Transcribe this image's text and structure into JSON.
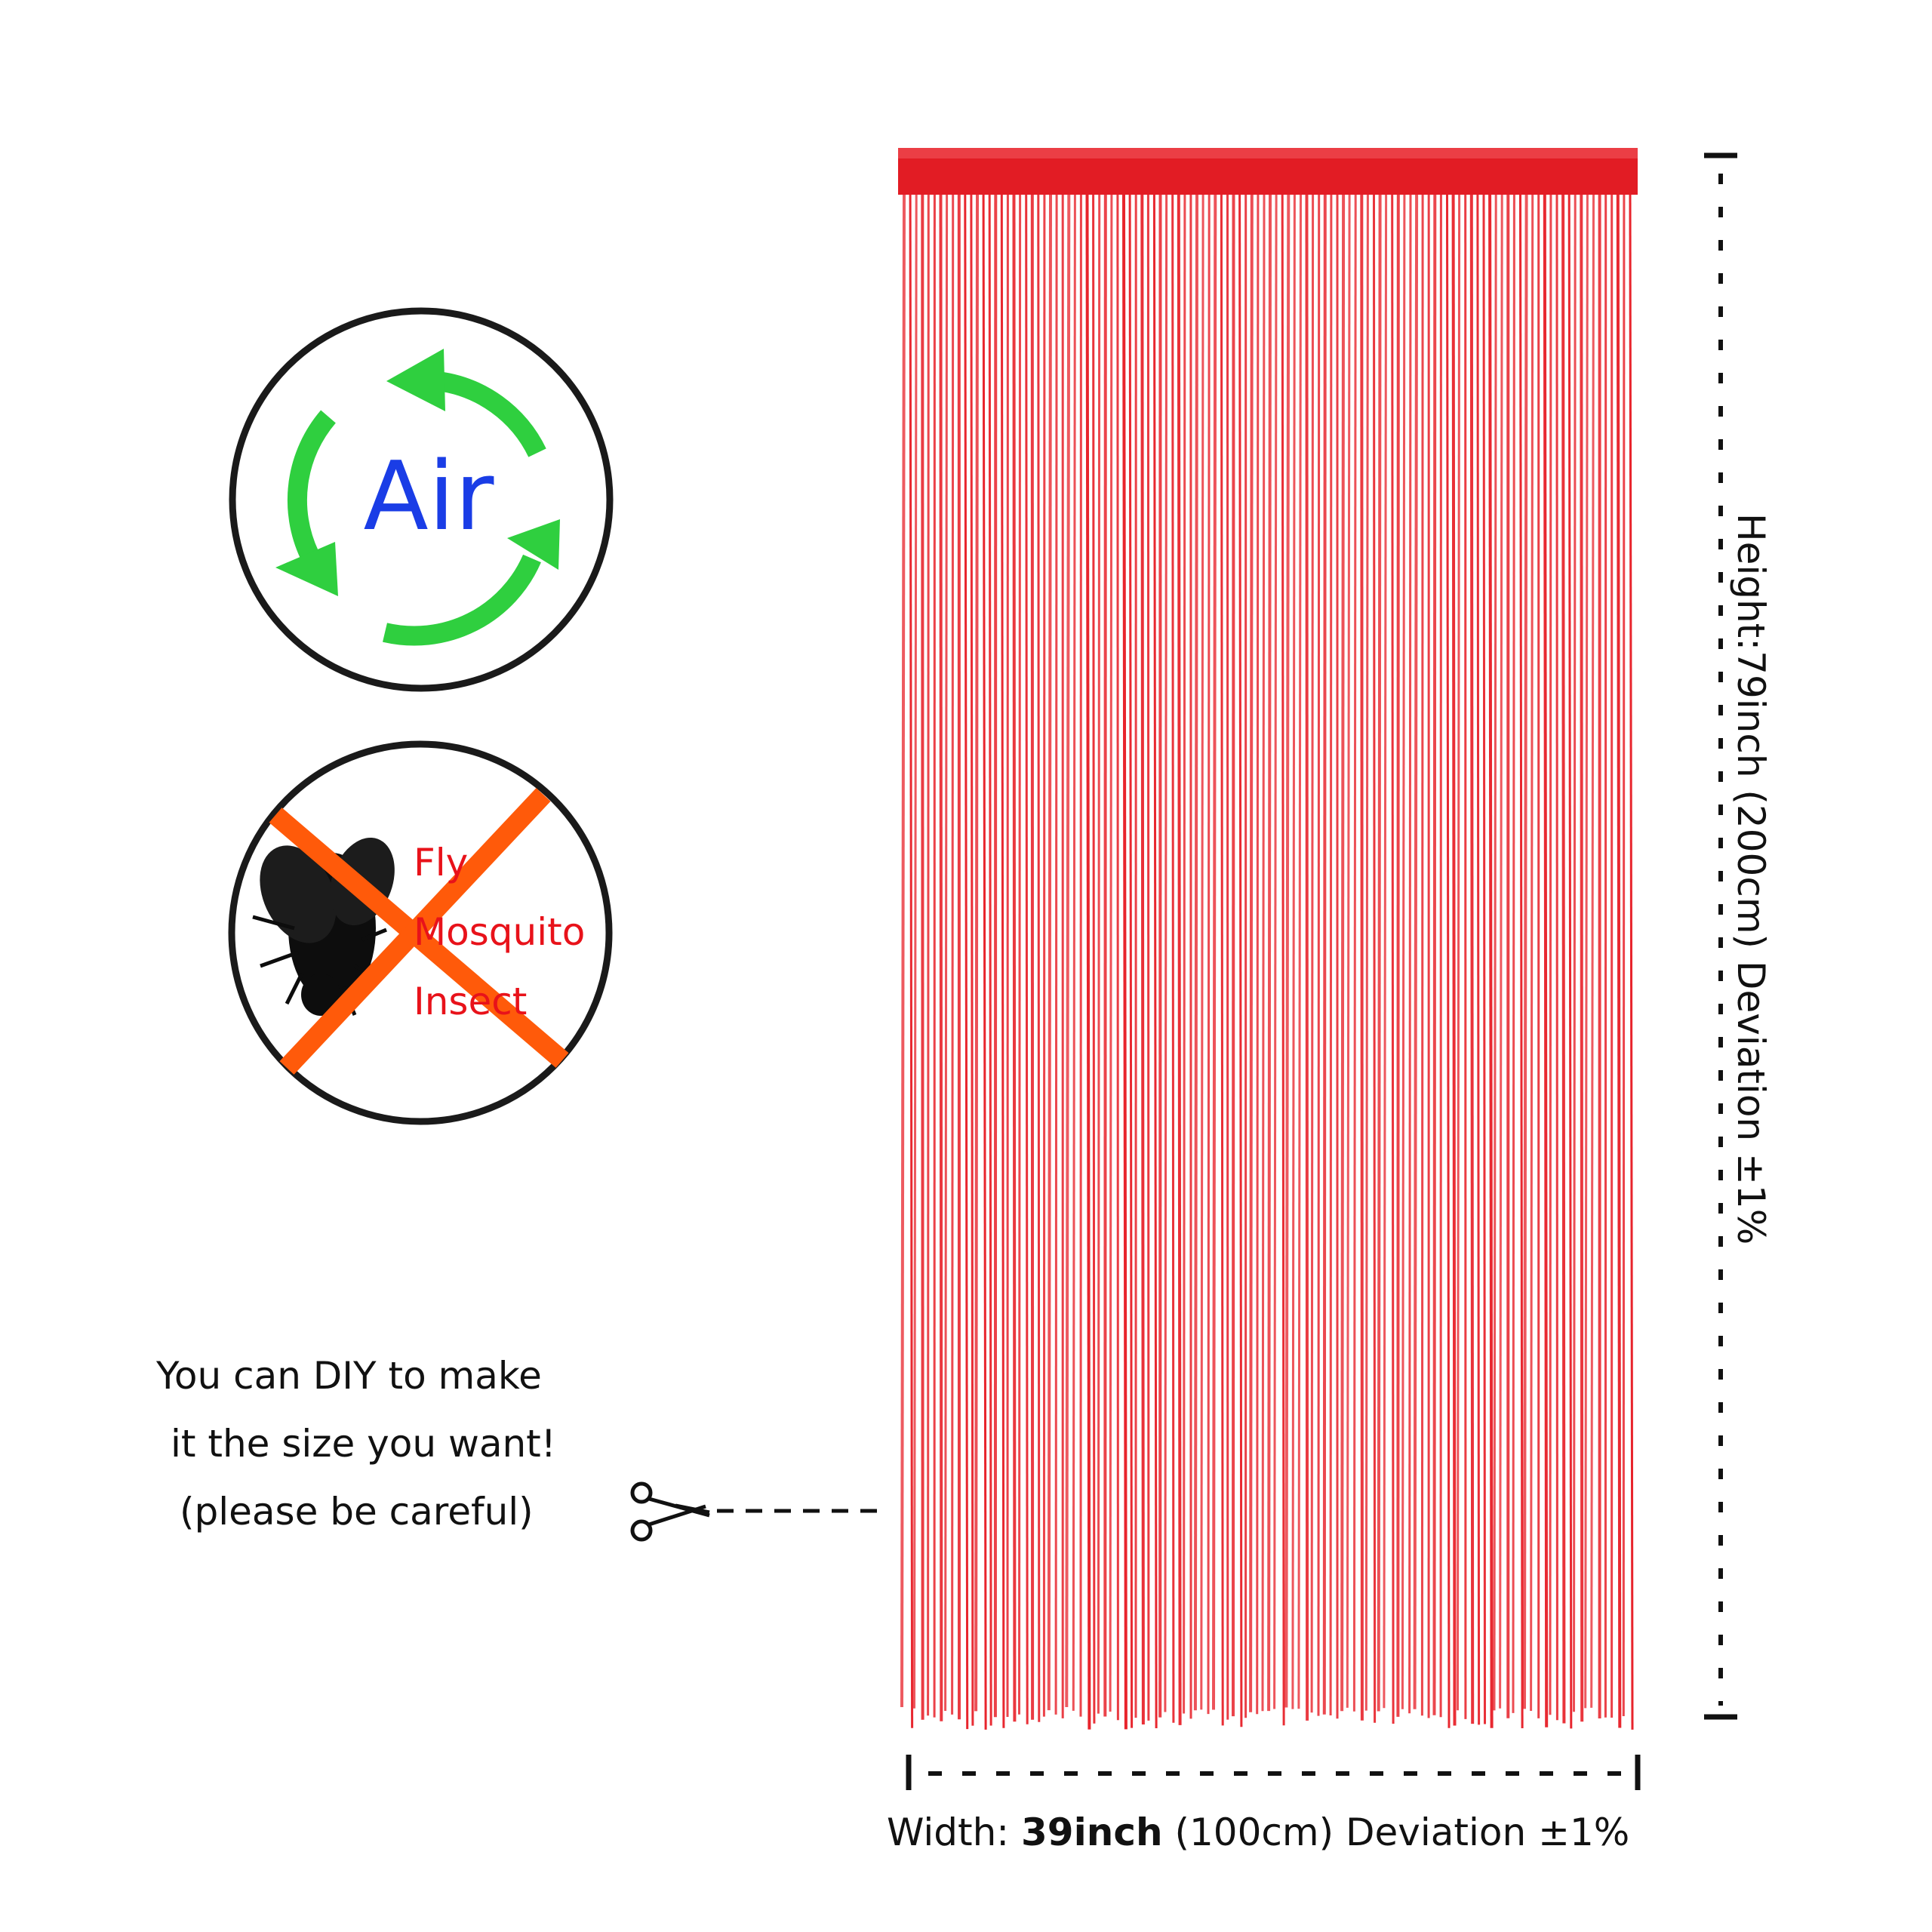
{
  "badges": {
    "air": {
      "label": "Air",
      "arrow_color": "#2fcf3f",
      "text_color": "#1a3de6",
      "ring_color": "#1a1a1a"
    },
    "insects": {
      "labels": [
        "Fly",
        "Mosquito",
        "Insect"
      ],
      "cross_color": "#ff5a0a",
      "text_color": "#e8121a",
      "icon": "fly-icon"
    }
  },
  "diy": {
    "line1": "You can DIY to make",
    "line2": "it the size you want!",
    "line3": "(please be careful)",
    "icon": "scissors-icon"
  },
  "curtain": {
    "color": "#e8242c",
    "header_color": "#e21c24"
  },
  "dimensions": {
    "height_label": "Height:79inch  (200cm) Deviation ±1%",
    "width_prefix": "Width: ",
    "width_value": "39inch",
    "width_suffix": "  (100cm) Deviation ±1%"
  }
}
